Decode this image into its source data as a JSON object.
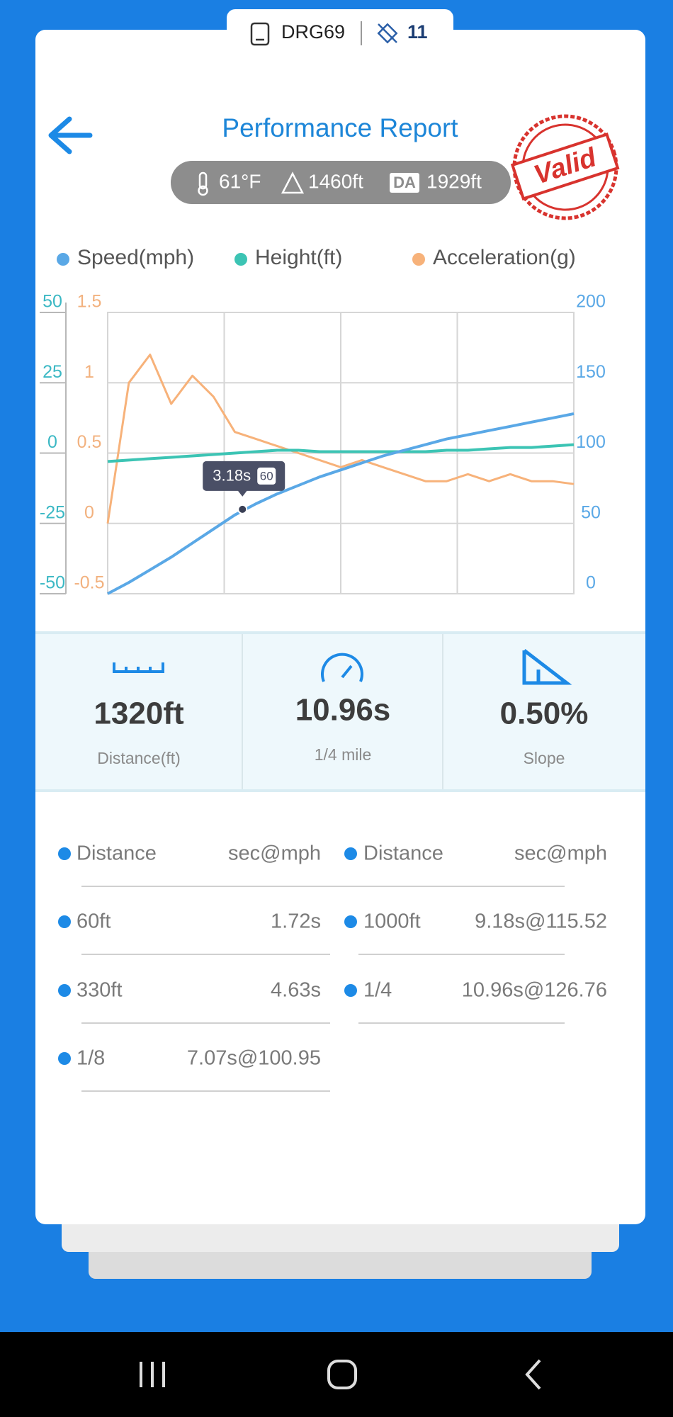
{
  "header": {
    "device": "DRG69",
    "satellites": 11,
    "title": "Performance Report",
    "stamp": "Valid"
  },
  "conditions": {
    "temperature": "61°F",
    "altitude": "1460ft",
    "da_badge": "DA",
    "density_altitude": "1929ft"
  },
  "chart_data": {
    "type": "line",
    "x": [
      0,
      0.5,
      1,
      1.5,
      2,
      2.5,
      3,
      3.5,
      4,
      4.5,
      5,
      5.5,
      6,
      6.5,
      7,
      7.5,
      8,
      8.5,
      9,
      9.5,
      10,
      10.5,
      11
    ],
    "xlim": [
      0,
      11
    ],
    "series": [
      {
        "name": "Speed(mph)",
        "color": "#5aa8e6",
        "axis": "y2",
        "values": [
          0,
          8,
          17,
          26,
          36,
          46,
          56,
          64,
          71,
          77,
          83,
          88,
          93,
          98,
          102,
          106,
          110,
          113,
          116,
          119,
          122,
          125,
          128
        ]
      },
      {
        "name": "Height(ft)",
        "color": "#3cc4b4",
        "axis": "y",
        "values": [
          -3,
          -2.5,
          -2,
          -1.5,
          -1,
          -0.5,
          0,
          0.5,
          1,
          1,
          0.5,
          0.5,
          0.5,
          0.5,
          0.5,
          0.5,
          1,
          1,
          1.5,
          2,
          2,
          2.5,
          3
        ]
      },
      {
        "name": "Acceleration(g)",
        "color": "#f7b27a",
        "axis": "y3",
        "values": [
          0,
          1.0,
          1.2,
          0.85,
          1.05,
          0.9,
          0.65,
          0.6,
          0.55,
          0.5,
          0.45,
          0.4,
          0.45,
          0.4,
          0.35,
          0.3,
          0.3,
          0.35,
          0.3,
          0.35,
          0.3,
          0.3,
          0.28
        ]
      }
    ],
    "ylim": [
      -50,
      50
    ],
    "yticks": [
      -50,
      -25,
      0,
      25,
      50
    ],
    "y2lim": [
      0,
      200
    ],
    "y2ticks": [
      0,
      50,
      100,
      150,
      200
    ],
    "y3lim": [
      -0.5,
      1.5
    ],
    "y3ticks": [
      -0.5,
      0,
      0.5,
      1,
      1.5
    ],
    "grid": true,
    "tooltip": {
      "x": {
        "value": 3.18,
        "label": "3.18s"
      },
      "y": 60
    }
  },
  "stats": [
    {
      "value": "1320ft",
      "label": "Distance(ft)"
    },
    {
      "value": "10.96s",
      "label": "1/4 mile"
    },
    {
      "value": "0.50%",
      "label": "Slope"
    }
  ],
  "splits": {
    "headers": [
      "Distance",
      "sec@mph",
      "Distance",
      "sec@mph"
    ],
    "left": [
      [
        "60ft",
        "1.72s"
      ],
      [
        "330ft",
        "4.63s"
      ],
      [
        "1/8",
        "7.07s@100.95"
      ]
    ],
    "right": [
      [
        "1000ft",
        "9.18s@115.52"
      ],
      [
        "1/4",
        "10.96s@126.76"
      ]
    ]
  }
}
